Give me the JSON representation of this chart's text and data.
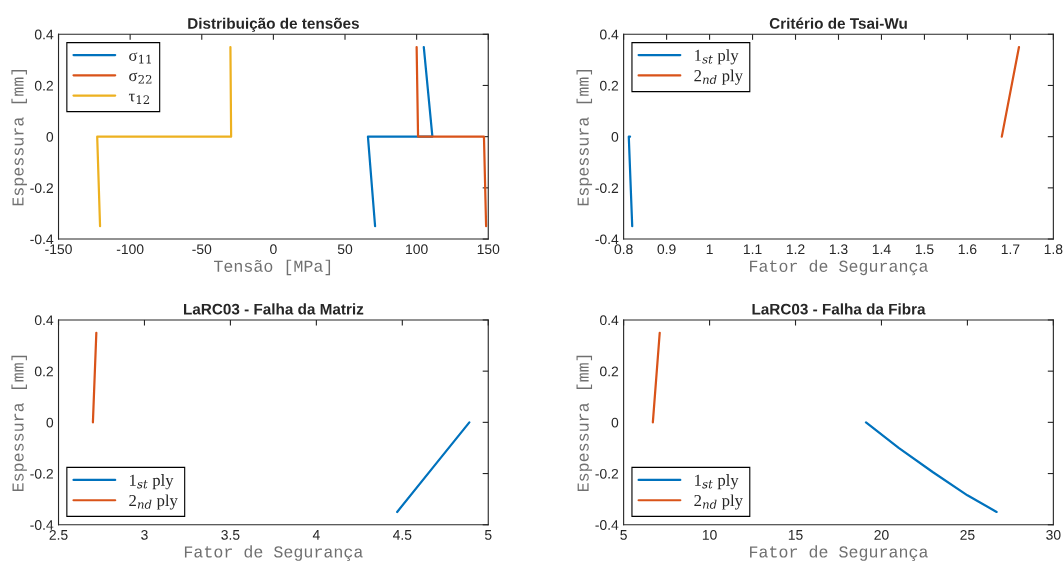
{
  "chart_data": [
    {
      "type": "line",
      "title": "Distribuição de tensões",
      "xlabel": "Tensão [MPa]",
      "ylabel": "Espessura [mm]",
      "xlim": [
        -150,
        150
      ],
      "ylim": [
        -0.4,
        0.4
      ],
      "xticks": [
        -150,
        -100,
        -50,
        0,
        50,
        100,
        150
      ],
      "yticks": [
        -0.4,
        -0.2,
        0,
        0.2,
        0.4
      ],
      "grid": false,
      "legend": "top left",
      "series": [
        {
          "name": "σ$_{11}$",
          "color": "#0072bd",
          "x": [
            105,
            111,
            66,
            71
          ],
          "values": [
            0.35,
            0,
            0,
            -0.35
          ]
        },
        {
          "name": "σ$_{22}$",
          "color": "#d95319",
          "x": [
            100,
            101,
            147,
            148.5
          ],
          "values": [
            0.35,
            0,
            0,
            -0.35
          ]
        },
        {
          "name": "τ$_{12}$",
          "color": "#edb120",
          "x": [
            -30,
            -29.5,
            -123,
            -121
          ],
          "values": [
            0.35,
            0,
            0,
            -0.35
          ]
        }
      ]
    },
    {
      "type": "line",
      "title": "Critério de Tsai-Wu",
      "xlabel": "Fator de Segurança",
      "ylabel": "Espessura [mm]",
      "xlim": [
        0.8,
        1.8
      ],
      "ylim": [
        -0.4,
        0.4
      ],
      "xticks": [
        0.8,
        0.9,
        1,
        1.1,
        1.2,
        1.3,
        1.4,
        1.5,
        1.6,
        1.7,
        1.8
      ],
      "yticks": [
        -0.4,
        -0.2,
        0,
        0.2,
        0.4
      ],
      "grid": false,
      "legend": "top left",
      "series": [
        {
          "name": "1$_{st}$ ply",
          "color": "#0072bd",
          "x": [
            0.815,
            0.812,
            0.82
          ],
          "values": [
            0,
            0,
            -0.35
          ]
        },
        {
          "name": "2$_{nd}$ ply",
          "color": "#d95319",
          "x": [
            1.68,
            1.72
          ],
          "values": [
            0,
            0.35
          ]
        }
      ]
    },
    {
      "type": "line",
      "title": "LaRC03 - Falha da Matriz",
      "xlabel": "Fator de Segurança",
      "ylabel": "Espessura [mm]",
      "xlim": [
        2.5,
        5
      ],
      "ylim": [
        -0.4,
        0.4
      ],
      "xticks": [
        2.5,
        3,
        3.5,
        4,
        4.5,
        5
      ],
      "yticks": [
        -0.4,
        -0.2,
        0,
        0.2,
        0.4
      ],
      "grid": false,
      "legend": "bottom left",
      "series": [
        {
          "name": "1$_{st}$ ply",
          "color": "#0072bd",
          "x": [
            4.89,
            4.68,
            4.47
          ],
          "values": [
            0,
            -0.175,
            -0.35
          ]
        },
        {
          "name": "2$_{nd}$ ply",
          "color": "#d95319",
          "x": [
            2.7,
            2.72
          ],
          "values": [
            0,
            0.35
          ]
        }
      ]
    },
    {
      "type": "line",
      "title": "LaRC03 - Falha da Fibra",
      "xlabel": "Fator de Segurança",
      "ylabel": "Espessura [mm]",
      "xlim": [
        5,
        30
      ],
      "ylim": [
        -0.4,
        0.4
      ],
      "xticks": [
        5,
        10,
        15,
        20,
        25,
        30
      ],
      "yticks": [
        -0.4,
        -0.2,
        0,
        0.2,
        0.4
      ],
      "grid": false,
      "legend": "bottom left",
      "series": [
        {
          "name": "1$_{st}$ ply",
          "color": "#0072bd",
          "x": [
            19.1,
            21,
            23,
            25,
            26.7
          ],
          "values": [
            0,
            -0.1,
            -0.195,
            -0.285,
            -0.35
          ]
        },
        {
          "name": "2$_{nd}$ ply",
          "color": "#d95319",
          "x": [
            6.7,
            7.1
          ],
          "values": [
            0,
            0.35
          ]
        }
      ]
    }
  ]
}
